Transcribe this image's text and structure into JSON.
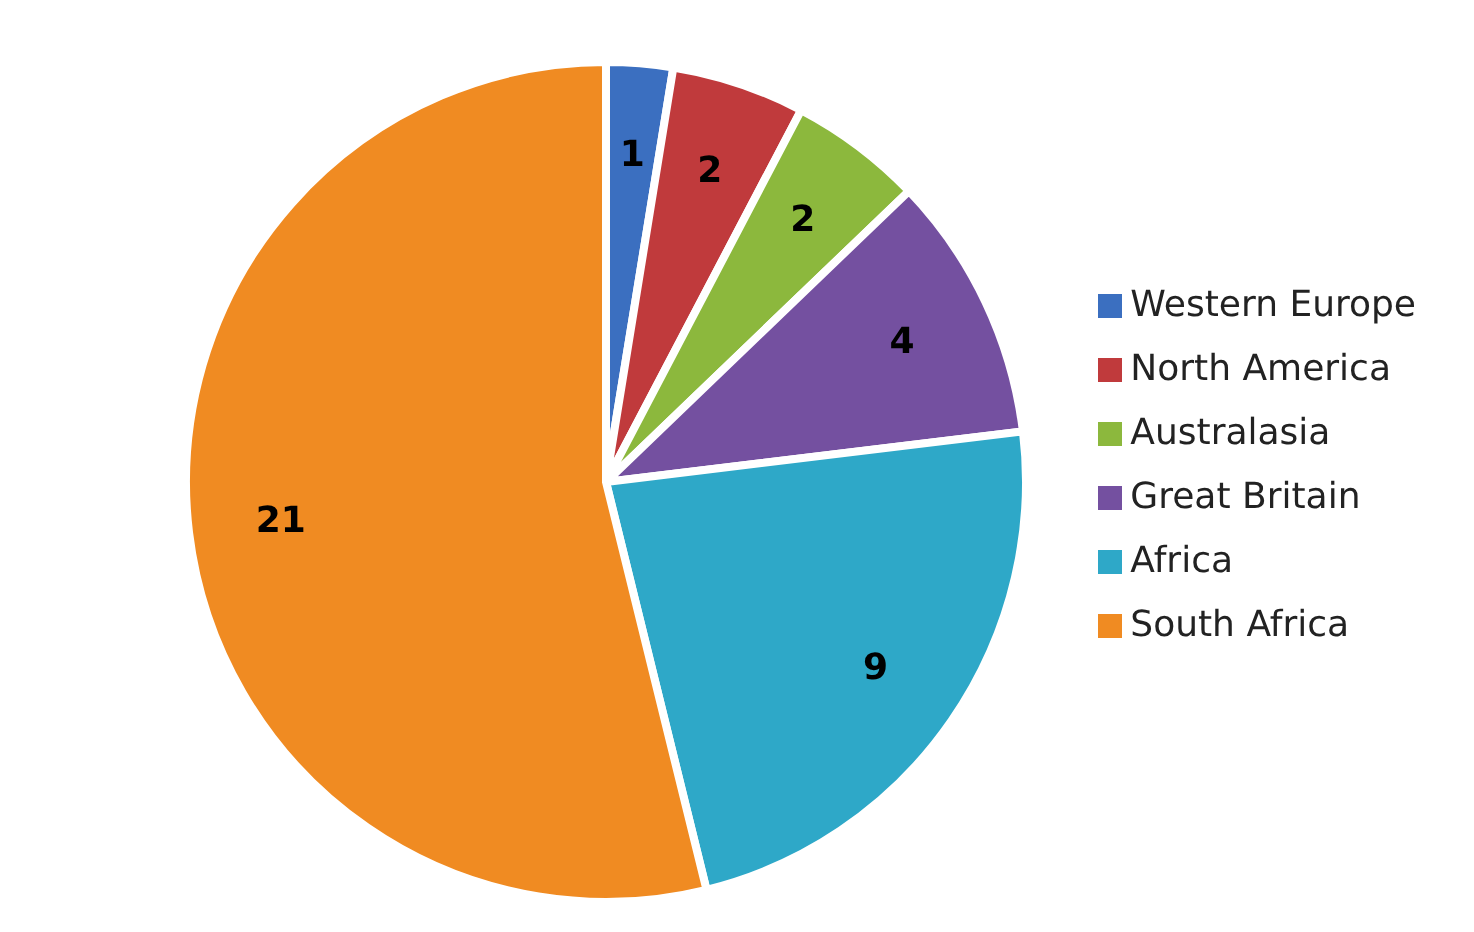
{
  "chart_data": {
    "type": "pie",
    "categories": [
      "Western Europe",
      "North America",
      "Australasia",
      "Great Britain",
      "Africa",
      "South Africa"
    ],
    "values": [
      1,
      2,
      2,
      4,
      9,
      21
    ],
    "colors": [
      "#3b6fc0",
      "#c03a3c",
      "#8cb83d",
      "#7450a0",
      "#2ea8c8",
      "#f08b22"
    ],
    "data_labels": true,
    "legend": "right"
  }
}
